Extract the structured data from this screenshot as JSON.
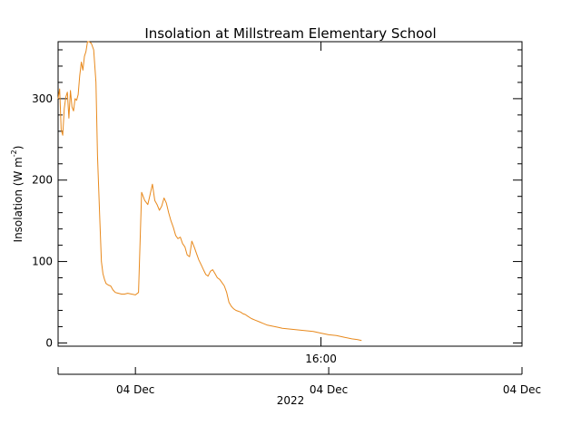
{
  "chart_data": {
    "type": "line",
    "title": "Insolation at Millstream Elementary School",
    "ylabel": "Insolation (W m",
    "ylabel_sup": "-2",
    "ylabel_end": ")",
    "ylim": [
      -4,
      370
    ],
    "yticks": [
      0,
      100,
      200,
      300
    ],
    "xlim": [
      9.2,
      21.2
    ],
    "upper_x_tick": {
      "x": 16.0,
      "label": "16:00"
    },
    "lower_axis_labels": [
      {
        "x": 11.2,
        "label": "04 Dec"
      },
      {
        "x": 16.2,
        "label": "04 Dec"
      },
      {
        "x": 21.2,
        "label": "04 Dec"
      }
    ],
    "year_label": "2022",
    "grid": false,
    "series": [
      {
        "color": "#e8891c",
        "x": [
          9.2,
          9.24,
          9.28,
          9.32,
          9.36,
          9.4,
          9.44,
          9.48,
          9.52,
          9.56,
          9.6,
          9.64,
          9.68,
          9.72,
          9.76,
          9.8,
          9.84,
          9.88,
          9.92,
          9.96,
          10.0,
          10.06,
          10.12,
          10.18,
          10.22,
          10.28,
          10.32,
          10.36,
          10.4,
          10.44,
          10.5,
          10.56,
          10.62,
          10.68,
          10.76,
          10.84,
          10.92,
          11.0,
          11.1,
          11.2,
          11.28,
          11.36,
          11.44,
          11.52,
          11.58,
          11.64,
          11.7,
          11.76,
          11.82,
          11.88,
          11.94,
          12.0,
          12.06,
          12.12,
          12.18,
          12.24,
          12.3,
          12.36,
          12.42,
          12.48,
          12.54,
          12.6,
          12.66,
          12.72,
          12.78,
          12.84,
          12.9,
          12.96,
          13.02,
          13.08,
          13.14,
          13.2,
          13.26,
          13.32,
          13.38,
          13.44,
          13.5,
          13.56,
          13.62,
          13.68,
          13.74,
          13.8,
          13.86,
          13.92,
          13.98,
          14.04,
          14.1,
          14.2,
          14.3,
          14.4,
          14.5,
          14.6,
          14.7,
          14.8,
          14.9,
          15.0,
          15.2,
          15.4,
          15.6,
          15.8,
          16.0,
          16.2,
          16.4,
          16.6,
          16.8,
          16.95,
          17.05
        ],
        "y": [
          300,
          312,
          262,
          255,
          288,
          302,
          308,
          276,
          310,
          290,
          285,
          300,
          298,
          305,
          328,
          345,
          335,
          352,
          358,
          370,
          370,
          368,
          360,
          320,
          230,
          150,
          100,
          85,
          78,
          73,
          71,
          70,
          65,
          62,
          61,
          60,
          60,
          61,
          60,
          59,
          62,
          185,
          175,
          170,
          182,
          195,
          175,
          170,
          163,
          168,
          178,
          172,
          160,
          150,
          142,
          132,
          128,
          130,
          122,
          118,
          108,
          106,
          125,
          118,
          110,
          102,
          96,
          90,
          84,
          82,
          88,
          90,
          85,
          80,
          78,
          74,
          70,
          62,
          50,
          45,
          42,
          40,
          39,
          38,
          36,
          35,
          33,
          30,
          28,
          26,
          24,
          22,
          21,
          20,
          19,
          18,
          17,
          16,
          15,
          14,
          12,
          10,
          9,
          7,
          5,
          4,
          3
        ]
      }
    ]
  }
}
